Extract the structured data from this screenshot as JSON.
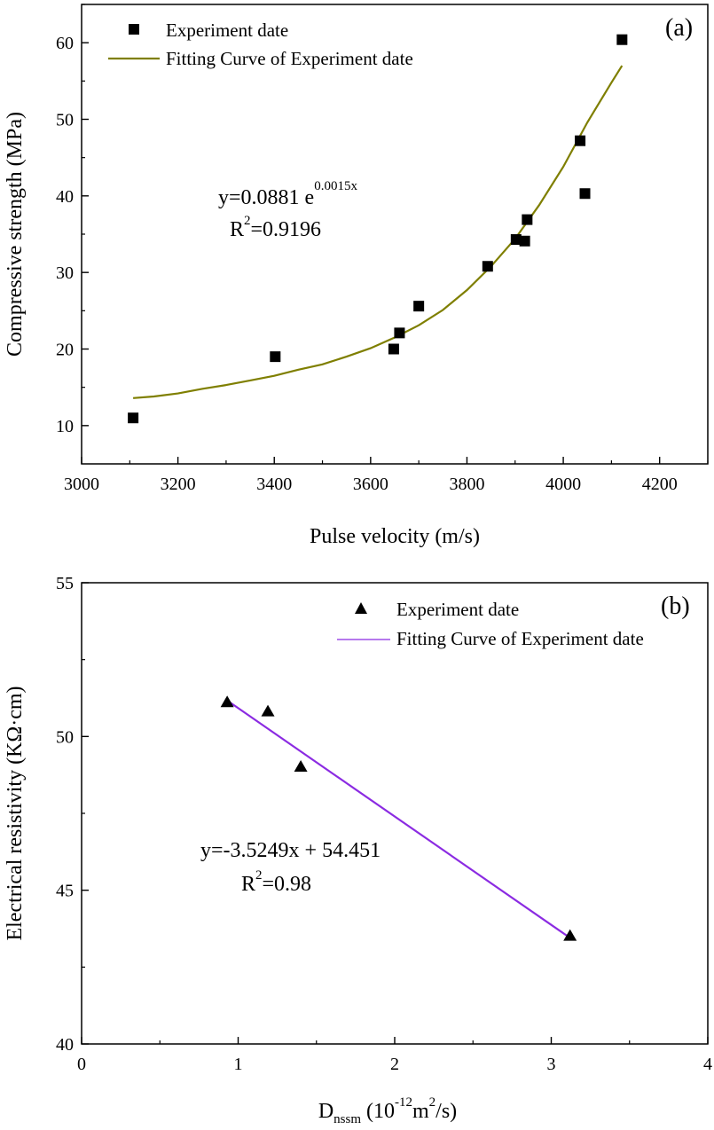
{
  "chart_data": [
    {
      "panel": "(a)",
      "type": "scatter",
      "xlabel": "Pulse velocity (m/s)",
      "ylabel": "Compressive strength (MPa)",
      "xlim": [
        3000,
        4300
      ],
      "ylim": [
        5,
        65
      ],
      "xticks": [
        3000,
        3200,
        3400,
        3600,
        3800,
        4000,
        4200
      ],
      "yticks": [
        10,
        20,
        30,
        40,
        50,
        60
      ],
      "series": [
        {
          "name": "Experiment date",
          "marker": "square",
          "color": "#000000",
          "x": [
            3107,
            3402,
            3648,
            3660,
            3700,
            3843,
            3902,
            3920,
            3925,
            4035,
            4045,
            4122
          ],
          "y": [
            11.0,
            19.0,
            20.0,
            22.1,
            25.6,
            30.8,
            34.3,
            34.1,
            36.9,
            47.2,
            40.3,
            60.4
          ]
        },
        {
          "name": "Fitting Curve of Experiment date",
          "kind": "fit",
          "color": "#7f7f00",
          "x": [
            3107,
            3150,
            3200,
            3250,
            3300,
            3350,
            3400,
            3450,
            3500,
            3550,
            3600,
            3650,
            3700,
            3750,
            3800,
            3850,
            3900,
            3950,
            4000,
            4050,
            4100,
            4122
          ],
          "y": [
            13.6,
            13.8,
            14.2,
            14.8,
            15.3,
            15.9,
            16.5,
            17.3,
            18.0,
            19.0,
            20.1,
            21.5,
            23.1,
            25.1,
            27.7,
            30.8,
            34.4,
            38.8,
            43.8,
            49.6,
            54.8,
            57.0
          ]
        }
      ],
      "annotation": {
        "text": "y=0.0881 e",
        "exponent": "0.0015x",
        "r2_base": "R",
        "r2_sup": "2",
        "r2_value": "=0.9196"
      }
    },
    {
      "panel": "(b)",
      "type": "scatter",
      "xlabel_main": "D",
      "xlabel_sub": "nssm",
      "xlabel_unit_parts": [
        " (10",
        "-12",
        "m",
        "2",
        "/s)"
      ],
      "ylabel": "Electrical resistivity (KΩ·cm)",
      "xlim": [
        0,
        4
      ],
      "ylim": [
        40,
        55
      ],
      "xticks": [
        0,
        1,
        2,
        3,
        4
      ],
      "yticks": [
        40,
        45,
        50,
        55
      ],
      "series": [
        {
          "name": "Experiment date",
          "marker": "triangle",
          "color": "#000000",
          "x": [
            0.93,
            1.19,
            1.4,
            3.12
          ],
          "y": [
            51.1,
            50.8,
            49.0,
            43.5
          ]
        },
        {
          "name": "Fitting Curve of Experiment date",
          "kind": "fit",
          "color": "#8b2be2",
          "x": [
            0.93,
            3.12
          ],
          "y": [
            51.17,
            43.45
          ]
        }
      ],
      "annotation": {
        "text": "y=-3.5249x + 54.451",
        "r2_base": "R",
        "r2_sup": "2",
        "r2_value": "=0.98"
      }
    }
  ]
}
